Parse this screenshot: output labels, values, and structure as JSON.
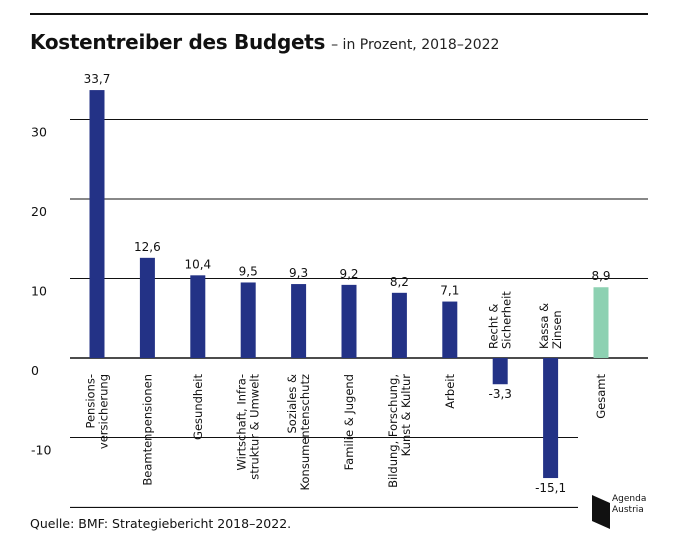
{
  "title": "Kostentreiber des Budgets",
  "subtitle": "– in Prozent, 2018–2022",
  "source": "Quelle: BMF: Strategiebericht 2018–2022.",
  "logo": {
    "line1": "Agenda",
    "line2": "Austria",
    "icon": "agenda-austria-logo-icon"
  },
  "colors": {
    "bar": "#233286",
    "highlight": "#8dd1b2",
    "grid": "#111111"
  },
  "chart_data": {
    "type": "bar",
    "title": "Kostentreiber des Budgets",
    "subtitle": "– in Prozent, 2018–2022",
    "xlabel": "",
    "ylabel": "",
    "ylim": [
      -18,
      42
    ],
    "yticks": [
      -10,
      0,
      10,
      20,
      30
    ],
    "ytick_labels": [
      "-10",
      "0",
      "10",
      "20",
      "30"
    ],
    "grid": true,
    "categories": [
      [
        "Pensions-",
        "versicherung"
      ],
      [
        "Beamtenpensionen"
      ],
      [
        "Gesundheit"
      ],
      [
        "Wirtschaft, Infra-",
        "struktur & Umwelt"
      ],
      [
        "Soziales &",
        "Konsumentenschutz"
      ],
      [
        "Familie & Jugend"
      ],
      [
        "Bildung, Forschung,",
        "Kunst & Kultur"
      ],
      [
        "Arbeit"
      ],
      [
        "Recht &",
        "Sicherheit"
      ],
      [
        "Kassa &",
        "Zinsen"
      ],
      [
        "Gesamt"
      ]
    ],
    "values": [
      33.7,
      12.6,
      10.4,
      9.5,
      9.3,
      9.2,
      8.2,
      7.1,
      -3.3,
      -15.1,
      8.9
    ],
    "value_labels": [
      "33,7",
      "12,6",
      "10,4",
      "9,5",
      "9,3",
      "9,2",
      "8,2",
      "7,1",
      "-3,3",
      "-15,1",
      "8,9"
    ],
    "highlight": [
      false,
      false,
      false,
      false,
      false,
      false,
      false,
      false,
      false,
      false,
      true
    ]
  }
}
